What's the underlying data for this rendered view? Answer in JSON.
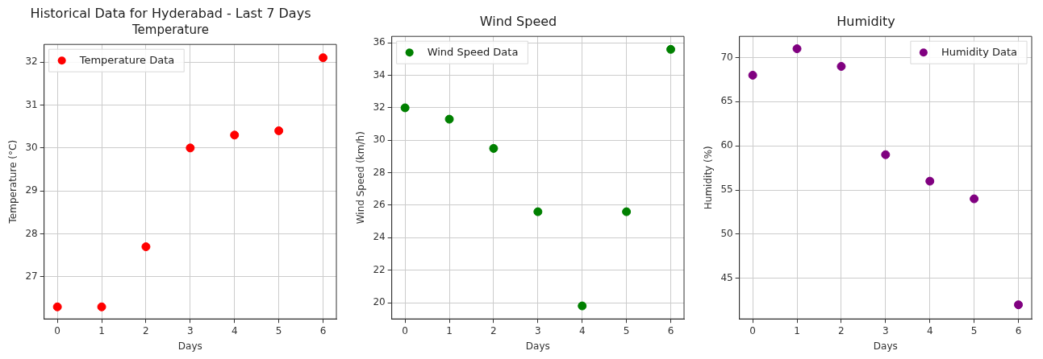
{
  "chart_data": [
    {
      "type": "scatter",
      "title": "Historical Data for Hyderabad - Last 7 Days",
      "subtitle": "Temperature",
      "xlabel": "Days",
      "ylabel": "Temperature (°C)",
      "x": [
        0,
        1,
        2,
        3,
        4,
        5,
        6
      ],
      "series": [
        {
          "name": "Temperature Data",
          "color": "#ff0000",
          "values": [
            26.3,
            26.3,
            27.7,
            30.0,
            30.3,
            30.4,
            32.1
          ]
        }
      ],
      "xlim": [
        -0.3,
        6.3
      ],
      "xticks": [
        0,
        1,
        2,
        3,
        4,
        5,
        6
      ],
      "ylim": [
        26.02,
        32.41
      ],
      "yticks": [
        27,
        28,
        29,
        30,
        31,
        32
      ],
      "grid": true,
      "legend": "top left",
      "marker": "circle"
    },
    {
      "type": "scatter",
      "title": "Wind Speed",
      "xlabel": "Days",
      "ylabel": "Wind Speed (km/h)",
      "x": [
        0,
        1,
        2,
        3,
        4,
        5,
        6
      ],
      "series": [
        {
          "name": "Wind Speed Data",
          "color": "#008000",
          "values": [
            32.0,
            31.3,
            29.5,
            25.6,
            19.8,
            25.6,
            35.6
          ]
        }
      ],
      "xlim": [
        -0.3,
        6.3
      ],
      "xticks": [
        0,
        1,
        2,
        3,
        4,
        5,
        6
      ],
      "ylim": [
        19.0,
        36.4
      ],
      "yticks": [
        20,
        22,
        24,
        26,
        28,
        30,
        32,
        34,
        36
      ],
      "grid": true,
      "legend": "top left",
      "marker": "circle"
    },
    {
      "type": "scatter",
      "title": "Humidity",
      "xlabel": "Days",
      "ylabel": "Humidity (%)",
      "x": [
        0,
        1,
        2,
        3,
        4,
        5,
        6
      ],
      "series": [
        {
          "name": "Humidity Data",
          "color": "#800080",
          "values": [
            68,
            71,
            69,
            59,
            56,
            54,
            42
          ]
        }
      ],
      "xlim": [
        -0.3,
        6.3
      ],
      "xticks": [
        0,
        1,
        2,
        3,
        4,
        5,
        6
      ],
      "ylim": [
        40.4,
        72.4
      ],
      "yticks": [
        45,
        50,
        55,
        60,
        65,
        70
      ],
      "grid": true,
      "legend": "top right",
      "marker": "circle"
    }
  ]
}
